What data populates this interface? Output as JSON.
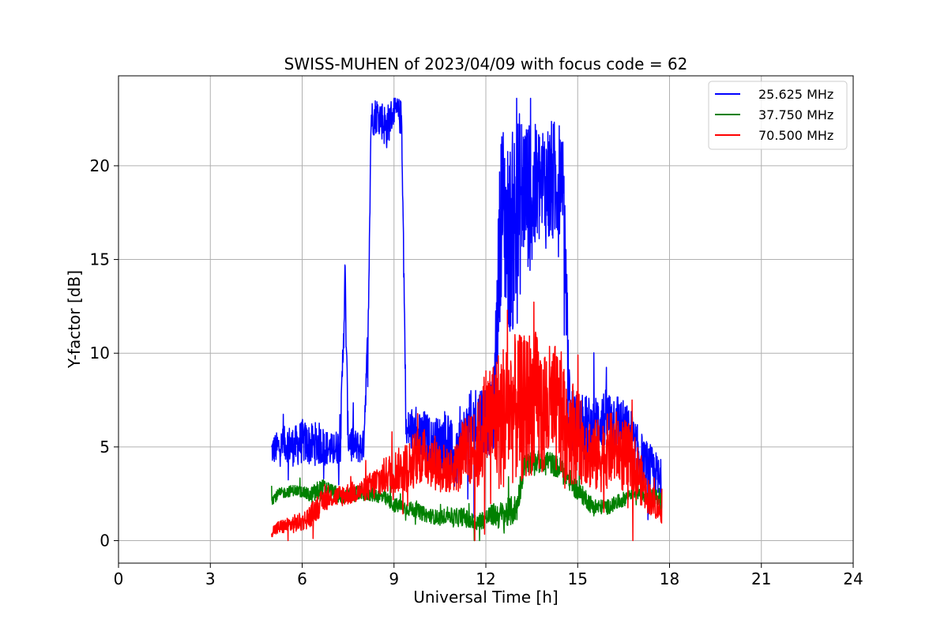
{
  "chart_data": {
    "type": "line",
    "title": "SWISS-MUHEN of 2023/04/09 with focus code = 62",
    "xlabel": "Universal Time [h]",
    "ylabel": "Y-factor [dB]",
    "xlim": [
      0,
      24
    ],
    "ylim": [
      -1.2,
      24.8
    ],
    "xticks": [
      0,
      3,
      6,
      9,
      12,
      15,
      18,
      21,
      24
    ],
    "yticks": [
      0,
      5,
      10,
      15,
      20
    ],
    "grid": true,
    "legend_position": "top-right",
    "series": [
      {
        "name": "25.625 MHz",
        "color": "#0000ff",
        "x": [
          5.0,
          5.25,
          5.5,
          5.75,
          6.0,
          6.25,
          6.5,
          6.75,
          7.0,
          7.25,
          7.4,
          7.5,
          7.75,
          8.0,
          8.15,
          8.25,
          8.5,
          8.75,
          9.0,
          9.25,
          9.4,
          9.5,
          9.75,
          10.0,
          10.25,
          10.5,
          10.75,
          11.0,
          11.25,
          11.5,
          11.75,
          12.0,
          12.25,
          12.5,
          12.75,
          13.0,
          13.25,
          13.5,
          13.75,
          14.0,
          14.25,
          14.5,
          14.75,
          15.0,
          15.25,
          15.5,
          15.75,
          16.0,
          16.25,
          16.5,
          16.75,
          17.0,
          17.25,
          17.5,
          17.75
        ],
        "y": [
          4.8,
          5.0,
          5.2,
          5.0,
          5.3,
          5.1,
          5.2,
          5.0,
          4.8,
          5.2,
          14.0,
          5.5,
          5.0,
          5.0,
          11.0,
          22.5,
          22.8,
          22.0,
          23.0,
          22.5,
          5.5,
          6.0,
          5.5,
          5.5,
          5.0,
          5.2,
          5.5,
          4.0,
          5.5,
          6.0,
          6.5,
          6.5,
          6.5,
          18.0,
          16.0,
          17.0,
          19.0,
          18.0,
          19.0,
          19.0,
          19.0,
          20.0,
          6.5,
          6.0,
          6.0,
          6.0,
          6.5,
          6.5,
          6.5,
          6.0,
          5.5,
          4.5,
          4.0,
          3.5,
          3.0
        ],
        "amplitude": [
          0.8,
          0.9,
          1.0,
          1.1,
          1.2,
          1.1,
          1.2,
          1.0,
          0.9,
          1.0,
          1.5,
          1.0,
          0.9,
          0.9,
          1.0,
          1.0,
          1.0,
          1.2,
          0.8,
          1.0,
          1.0,
          1.2,
          1.2,
          1.5,
          1.5,
          1.5,
          1.8,
          1.5,
          1.5,
          2.0,
          2.0,
          2.0,
          2.0,
          5.0,
          5.0,
          6.0,
          4.0,
          4.0,
          3.5,
          3.5,
          3.5,
          2.5,
          2.0,
          1.8,
          1.8,
          1.6,
          1.6,
          1.6,
          1.6,
          1.5,
          1.5,
          1.5,
          1.4,
          1.4,
          1.3
        ]
      },
      {
        "name": "37.750 MHz",
        "color": "#008000",
        "x": [
          5.0,
          5.25,
          5.5,
          5.75,
          6.0,
          6.25,
          6.5,
          6.75,
          7.0,
          7.25,
          7.5,
          7.75,
          8.0,
          8.25,
          8.5,
          8.75,
          9.0,
          9.25,
          9.5,
          9.75,
          10.0,
          10.25,
          10.5,
          10.75,
          11.0,
          11.25,
          11.5,
          11.75,
          12.0,
          12.25,
          12.5,
          12.75,
          13.0,
          13.25,
          13.5,
          13.75,
          14.0,
          14.25,
          14.5,
          14.75,
          15.0,
          15.25,
          15.5,
          15.75,
          16.0,
          16.25,
          16.5,
          16.75,
          17.0,
          17.25,
          17.5,
          17.75
        ],
        "y": [
          2.2,
          2.5,
          2.6,
          2.7,
          2.6,
          2.4,
          2.6,
          2.8,
          2.6,
          2.3,
          2.4,
          2.5,
          2.5,
          2.5,
          2.4,
          2.2,
          1.9,
          1.8,
          1.7,
          1.6,
          1.4,
          1.3,
          1.2,
          1.4,
          1.2,
          1.3,
          1.0,
          1.0,
          1.2,
          1.4,
          1.3,
          1.5,
          1.7,
          4.0,
          4.2,
          4.2,
          4.3,
          4.0,
          3.8,
          3.2,
          2.6,
          2.3,
          1.8,
          1.8,
          1.8,
          2.0,
          2.2,
          2.6,
          2.6,
          2.4,
          2.4,
          2.2
        ],
        "amplitude": [
          0.3,
          0.3,
          0.3,
          0.3,
          0.3,
          0.4,
          0.6,
          0.5,
          0.4,
          0.4,
          0.4,
          0.4,
          0.4,
          0.4,
          0.4,
          0.4,
          0.4,
          0.4,
          0.4,
          0.4,
          0.4,
          0.4,
          0.4,
          0.4,
          0.5,
          0.5,
          0.5,
          0.5,
          0.5,
          0.6,
          0.8,
          0.8,
          0.8,
          0.6,
          0.6,
          0.6,
          0.6,
          0.6,
          0.6,
          0.6,
          0.5,
          0.5,
          0.5,
          0.4,
          0.4,
          0.4,
          0.4,
          0.4,
          0.4,
          0.4,
          0.4,
          0.4
        ]
      },
      {
        "name": "70.500 MHz",
        "color": "#ff0000",
        "x": [
          5.0,
          5.25,
          5.5,
          5.75,
          6.0,
          6.25,
          6.5,
          6.75,
          7.0,
          7.25,
          7.5,
          7.75,
          8.0,
          8.25,
          8.5,
          8.75,
          9.0,
          9.25,
          9.5,
          9.75,
          10.0,
          10.25,
          10.5,
          10.75,
          11.0,
          11.25,
          11.5,
          11.75,
          12.0,
          12.25,
          12.5,
          12.75,
          13.0,
          13.25,
          13.5,
          13.75,
          14.0,
          14.25,
          14.5,
          14.75,
          15.0,
          15.25,
          15.5,
          15.75,
          16.0,
          16.25,
          16.5,
          16.75,
          17.0,
          17.25,
          17.5,
          17.75
        ],
        "y": [
          0.5,
          0.7,
          0.8,
          0.9,
          1.0,
          1.3,
          1.8,
          2.2,
          2.3,
          2.4,
          2.5,
          2.6,
          2.7,
          2.9,
          3.2,
          3.5,
          3.7,
          3.8,
          4.0,
          4.5,
          4.5,
          4.3,
          4.0,
          3.7,
          3.8,
          4.5,
          4.8,
          5.0,
          6.5,
          6.5,
          6.5,
          7.0,
          7.0,
          7.0,
          7.5,
          7.0,
          7.0,
          7.0,
          6.5,
          6.0,
          5.5,
          5.0,
          4.5,
          4.5,
          4.8,
          5.0,
          4.5,
          4.2,
          3.5,
          2.5,
          2.0,
          1.5
        ],
        "amplitude": [
          0.3,
          0.4,
          0.4,
          0.5,
          0.5,
          0.6,
          0.7,
          0.6,
          0.5,
          0.6,
          0.6,
          0.6,
          0.6,
          0.8,
          1.0,
          1.0,
          1.2,
          1.2,
          1.5,
          1.5,
          1.5,
          1.5,
          1.5,
          1.2,
          1.2,
          2.0,
          2.0,
          2.5,
          3.0,
          3.5,
          4.0,
          4.0,
          4.0,
          4.0,
          4.0,
          4.0,
          3.5,
          3.5,
          3.5,
          3.0,
          2.5,
          2.0,
          2.0,
          2.0,
          2.0,
          2.0,
          2.0,
          2.0,
          1.5,
          1.0,
          0.8,
          0.6
        ]
      }
    ]
  }
}
